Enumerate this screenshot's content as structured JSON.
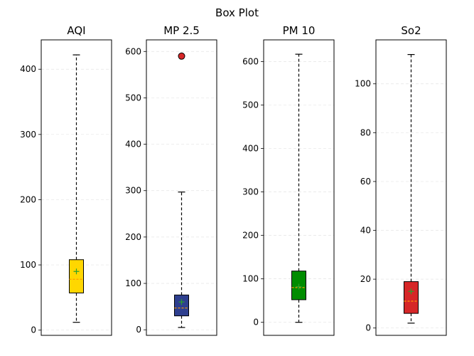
{
  "chart_data": {
    "type": "box",
    "title": "Box Plot",
    "panels": [
      {
        "name": "AQI",
        "ylim": [
          -8,
          445
        ],
        "ticks": [
          0,
          100,
          200,
          300,
          400
        ],
        "box_color": "#ffd700",
        "whisker_low": 12,
        "q1": 57,
        "median": 78,
        "mean": 90,
        "q3": 108,
        "whisker_high": 422,
        "outliers": []
      },
      {
        "name": "MP 2.5",
        "ylim": [
          -12,
          625
        ],
        "ticks": [
          0,
          100,
          200,
          300,
          400,
          500,
          600
        ],
        "box_color": "#2e3f8f",
        "whisker_low": 5,
        "q1": 30,
        "median": 47,
        "mean": 60,
        "q3": 75,
        "whisker_high": 297,
        "outliers": [
          590
        ]
      },
      {
        "name": "PM 10",
        "ylim": [
          -30,
          650
        ],
        "ticks": [
          0,
          100,
          200,
          300,
          400,
          500,
          600
        ],
        "box_color": "#008c00",
        "whisker_low": 0,
        "q1": 52,
        "median": 80,
        "mean": 82,
        "q3": 118,
        "whisker_high": 617,
        "outliers": []
      },
      {
        "name": "So2",
        "ylim": [
          -3,
          118
        ],
        "ticks": [
          0,
          20,
          40,
          60,
          80,
          100
        ],
        "box_color": "#d62728",
        "whisker_low": 2,
        "q1": 6,
        "median": 11,
        "mean": 15,
        "q3": 19,
        "whisker_high": 112,
        "outliers": []
      }
    ]
  }
}
